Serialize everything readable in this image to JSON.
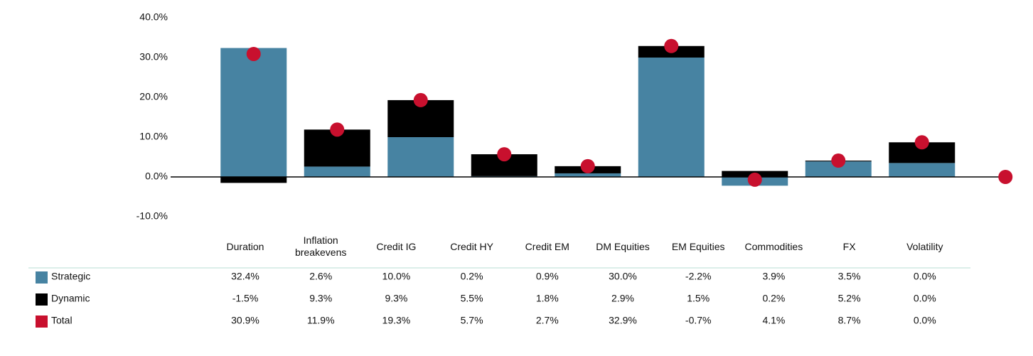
{
  "chart_data": {
    "type": "bar",
    "stacked": true,
    "categories": [
      "Duration",
      "Inflation breakevens",
      "Credit IG",
      "Credit HY",
      "Credit EM",
      "DM Equities",
      "EM Equities",
      "Commodities",
      "FX",
      "Volatility"
    ],
    "series": [
      {
        "name": "Strategic",
        "color": "#4783a2",
        "values": [
          32.4,
          2.6,
          10.0,
          0.2,
          0.9,
          30.0,
          -2.2,
          3.9,
          3.5,
          0.0
        ],
        "value_labels": [
          "32.4%",
          "2.6%",
          "10.0%",
          "0.2%",
          "0.9%",
          "30.0%",
          "-2.2%",
          "3.9%",
          "3.5%",
          "0.0%"
        ]
      },
      {
        "name": "Dynamic",
        "color": "#000000",
        "values": [
          -1.5,
          9.3,
          9.3,
          5.5,
          1.8,
          2.9,
          1.5,
          0.2,
          5.2,
          0.0
        ],
        "value_labels": [
          "-1.5%",
          "9.3%",
          "9.3%",
          "5.5%",
          "1.8%",
          "2.9%",
          "1.5%",
          "0.2%",
          "5.2%",
          "0.0%"
        ]
      },
      {
        "name": "Total",
        "color": "#c8102e",
        "marker": "dot",
        "values": [
          30.9,
          11.9,
          19.3,
          5.7,
          2.7,
          32.9,
          -0.7,
          4.1,
          8.7,
          0.0
        ],
        "value_labels": [
          "30.9%",
          "11.9%",
          "19.3%",
          "5.7%",
          "2.7%",
          "32.9%",
          "-0.7%",
          "4.1%",
          "8.7%",
          "0.0%"
        ]
      }
    ],
    "ylim": [
      -10,
      40
    ],
    "yticks": [
      {
        "value": -10,
        "label": "-10.0%"
      },
      {
        "value": 0,
        "label": "0.0%"
      },
      {
        "value": 10,
        "label": "10.0%"
      },
      {
        "value": 20,
        "label": "20.0%"
      },
      {
        "value": 30,
        "label": "30.0%"
      },
      {
        "value": 40,
        "label": "40.0%"
      }
    ],
    "grid": false
  }
}
